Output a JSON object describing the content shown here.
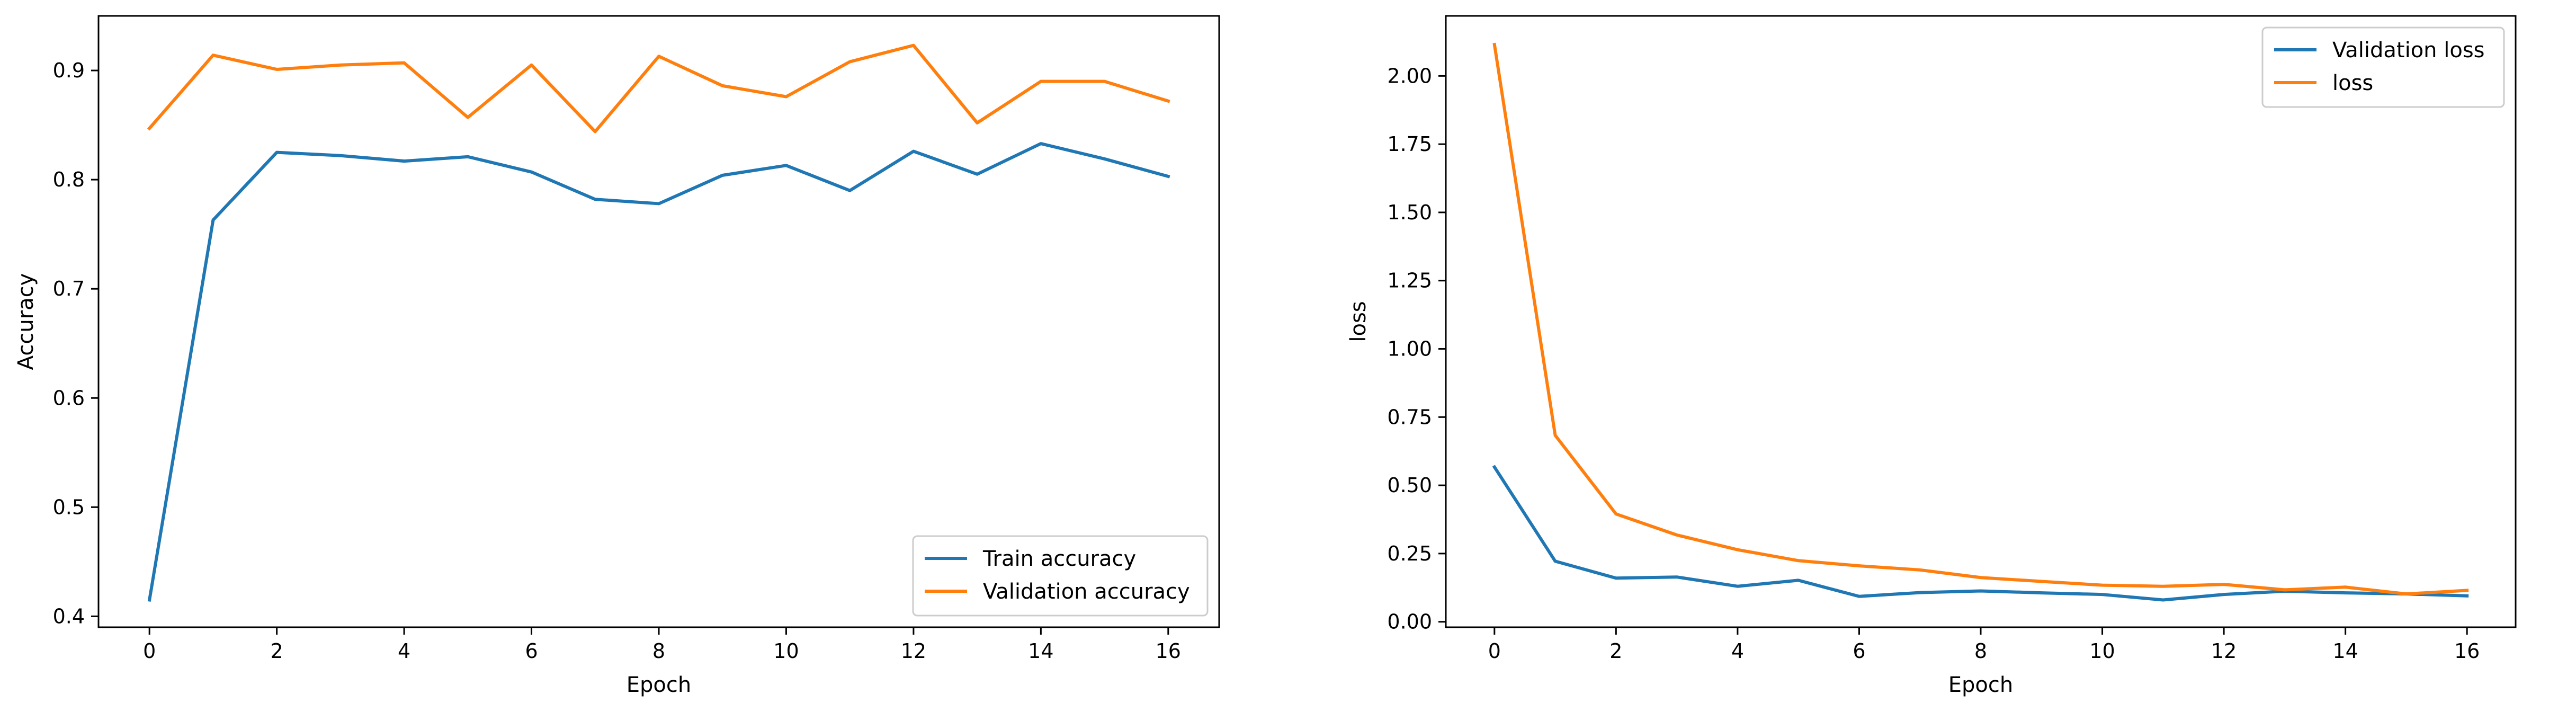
{
  "chart_data": [
    {
      "type": "line",
      "xlabel": "Epoch",
      "ylabel": "Accuracy",
      "xlim": [
        -0.8,
        16.8
      ],
      "ylim": [
        0.39,
        0.95
      ],
      "xticks": [
        0,
        2,
        4,
        6,
        8,
        10,
        12,
        14,
        16
      ],
      "yticks": [
        0.4,
        0.5,
        0.6,
        0.7,
        0.8,
        0.9
      ],
      "ytick_labels": [
        "0.4",
        "0.5",
        "0.6",
        "0.7",
        "0.8",
        "0.9"
      ],
      "legend_position": "lower-right",
      "grid": false,
      "x": [
        0,
        1,
        2,
        3,
        4,
        5,
        6,
        7,
        8,
        9,
        10,
        11,
        12,
        13,
        14,
        15,
        16
      ],
      "series": [
        {
          "name": "Train accuracy",
          "color": "#1f77b4",
          "values": [
            0.415,
            0.763,
            0.825,
            0.822,
            0.817,
            0.821,
            0.807,
            0.782,
            0.778,
            0.804,
            0.813,
            0.79,
            0.826,
            0.805,
            0.833,
            0.819,
            0.803
          ]
        },
        {
          "name": "Validation accuracy",
          "color": "#ff7f0e",
          "values": [
            0.847,
            0.914,
            0.901,
            0.905,
            0.907,
            0.857,
            0.905,
            0.844,
            0.913,
            0.886,
            0.876,
            0.908,
            0.923,
            0.852,
            0.89,
            0.89,
            0.872
          ]
        }
      ]
    },
    {
      "type": "line",
      "xlabel": "Epoch",
      "ylabel": "loss",
      "xlim": [
        -0.8,
        16.8
      ],
      "ylim": [
        -0.02,
        2.22
      ],
      "xticks": [
        0,
        2,
        4,
        6,
        8,
        10,
        12,
        14,
        16
      ],
      "yticks": [
        0.0,
        0.25,
        0.5,
        0.75,
        1.0,
        1.25,
        1.5,
        1.75,
        2.0
      ],
      "ytick_labels": [
        "0.00",
        "0.25",
        "0.50",
        "0.75",
        "1.00",
        "1.25",
        "1.50",
        "1.75",
        "2.00"
      ],
      "legend_position": "upper-right",
      "grid": false,
      "x": [
        0,
        1,
        2,
        3,
        4,
        5,
        6,
        7,
        8,
        9,
        10,
        11,
        12,
        13,
        14,
        15,
        16
      ],
      "series": [
        {
          "name": "Validation loss",
          "color": "#1f77b4",
          "values": [
            0.567,
            0.222,
            0.16,
            0.164,
            0.13,
            0.152,
            0.093,
            0.107,
            0.113,
            0.106,
            0.1,
            0.08,
            0.1,
            0.112,
            0.106,
            0.102,
            0.095
          ]
        },
        {
          "name": "loss",
          "color": "#ff7f0e",
          "values": [
            2.115,
            0.683,
            0.395,
            0.318,
            0.264,
            0.224,
            0.205,
            0.19,
            0.162,
            0.148,
            0.134,
            0.13,
            0.137,
            0.117,
            0.127,
            0.102,
            0.115
          ]
        }
      ]
    }
  ]
}
